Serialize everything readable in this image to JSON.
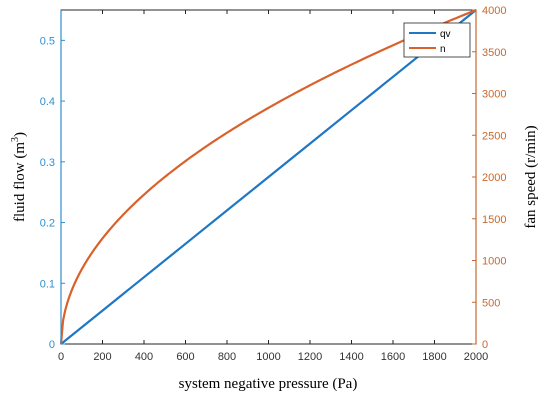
{
  "chart_data": {
    "type": "line",
    "xlabel": "system negative pressure (Pa)",
    "ylabel_left_base": "fluid flow (m",
    "ylabel_left_sup": "3",
    "ylabel_left_tail": ")",
    "ylabel_right": "fan speed (r/min)",
    "xlim": [
      0,
      2000
    ],
    "ylim_left": [
      0,
      0.55
    ],
    "ylim_right": [
      0,
      4000
    ],
    "x_ticks": [
      0,
      200,
      400,
      600,
      800,
      1000,
      1200,
      1400,
      1600,
      1800,
      2000
    ],
    "y_left_ticks": [
      0,
      0.1,
      0.2,
      0.3,
      0.4,
      0.5
    ],
    "y_right_ticks": [
      0,
      500,
      1000,
      1500,
      2000,
      2500,
      3000,
      3500,
      4000
    ],
    "x_tick_labels": [
      "0",
      "200",
      "400",
      "600",
      "800",
      "1000",
      "1200",
      "1400",
      "1600",
      "1800",
      "2000"
    ],
    "y_left_tick_labels": [
      "0",
      "0.1",
      "0.2",
      "0.3",
      "0.4",
      "0.5"
    ],
    "y_right_tick_labels": [
      "0",
      "500",
      "1000",
      "1500",
      "2000",
      "2500",
      "3000",
      "3500",
      "4000"
    ],
    "legend_placement": "top-right",
    "grid": false,
    "series": [
      {
        "name": "qv",
        "axis": "left",
        "color": "#1f77c4",
        "x": [
          0,
          200,
          400,
          600,
          800,
          1000,
          1200,
          1400,
          1600,
          1800,
          2000
        ],
        "y": [
          0,
          0.055,
          0.11,
          0.165,
          0.22,
          0.275,
          0.33,
          0.385,
          0.44,
          0.495,
          0.55
        ]
      },
      {
        "name": "n",
        "axis": "right",
        "color": "#d9622b",
        "x": [
          0,
          10,
          25,
          50,
          100,
          150,
          200,
          300,
          400,
          500,
          600,
          700,
          800,
          900,
          1000,
          1100,
          1200,
          1300,
          1400,
          1500,
          1600,
          1700,
          1800,
          1900,
          2000
        ],
        "y": [
          0,
          283,
          447,
          632,
          894,
          1095,
          1265,
          1549,
          1789,
          2000,
          2191,
          2366,
          2530,
          2683,
          2828,
          2966,
          3098,
          3225,
          3347,
          3464,
          3578,
          3688,
          3795,
          3899,
          4000
        ]
      }
    ]
  }
}
